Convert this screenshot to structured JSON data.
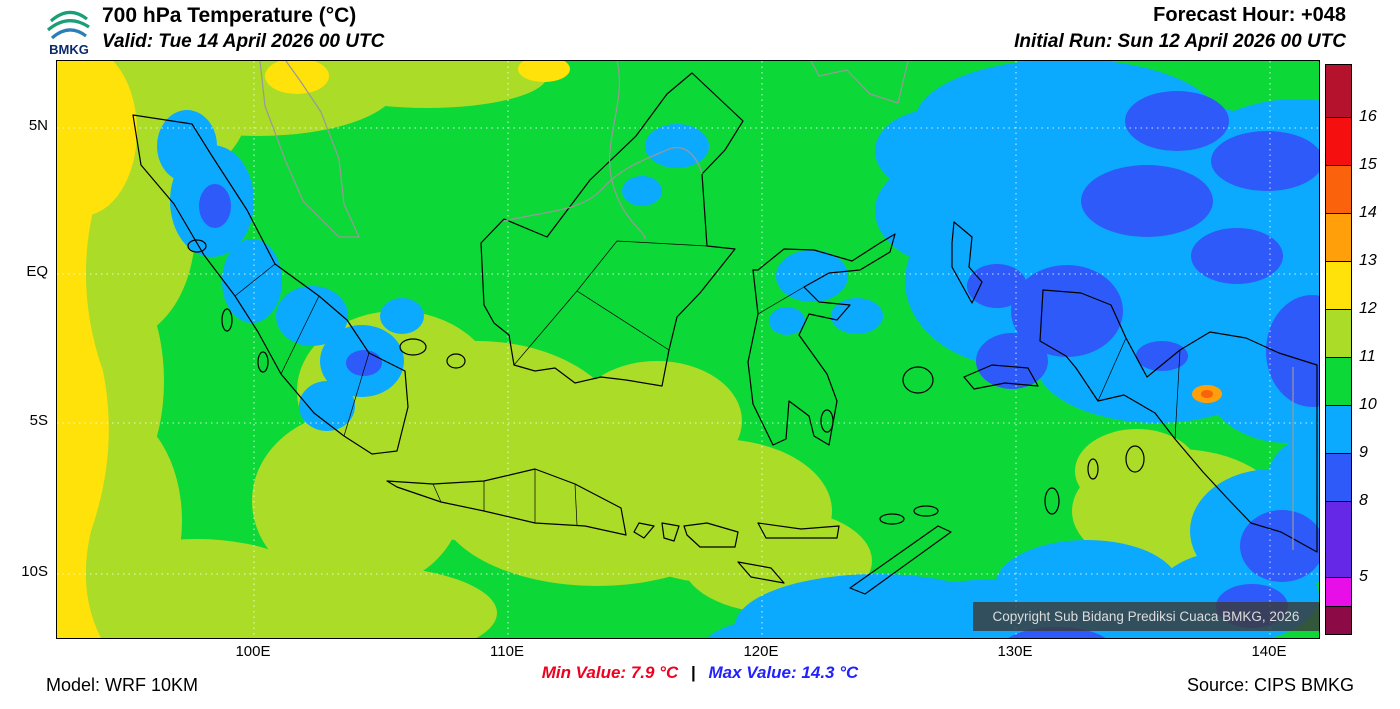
{
  "header": {
    "logo_text": "BMKG",
    "title": "700 hPa Temperature (°C)",
    "valid": "Valid: Tue 14 April 2026 00 UTC",
    "forecast_hour": "Forecast Hour: +048",
    "initial_run": "Initial Run: Sun 12 April 2026 00 UTC"
  },
  "map": {
    "lat_labels": [
      "5N",
      "EQ",
      "5S",
      "10S"
    ],
    "lon_labels": [
      "100E",
      "110E",
      "120E",
      "130E",
      "140E"
    ],
    "copyright": "Copyright Sub Bidang Prediksi Cuaca BMKG, 2026",
    "palette": {
      "green": "#0cd838",
      "yellow_green": "#abdc28",
      "yellow": "#ffe20a",
      "cyan": "#0caaff",
      "blue": "#2e5afa",
      "orange": "#ffa00a",
      "orange_red": "#fb620c"
    }
  },
  "colorbar": {
    "tick_labels": [
      "16",
      "15",
      "14",
      "13",
      "12",
      "11",
      "10",
      "9",
      "8",
      "5"
    ],
    "colors_top_to_bottom": [
      "#b4122d",
      "#f50f0f",
      "#fb620c",
      "#ffa00a",
      "#ffe20a",
      "#abdc28",
      "#0cd838",
      "#0caaff",
      "#2e5afa",
      "#6428e6",
      "#e80ee8",
      "#8c0a46"
    ]
  },
  "footer": {
    "model": "Model: WRF 10KM",
    "min_label": "Min Value:",
    "min_value": "7.9 °C",
    "separator": "|",
    "max_label": "Max Value:",
    "max_value": "14.3 °C",
    "source": "Source: CIPS BMKG"
  },
  "meta": {
    "variable": "700 hPa Temperature",
    "units": "°C",
    "forecast_hour": "+048",
    "min_value_c": 7.9,
    "max_value_c": 14.3
  }
}
